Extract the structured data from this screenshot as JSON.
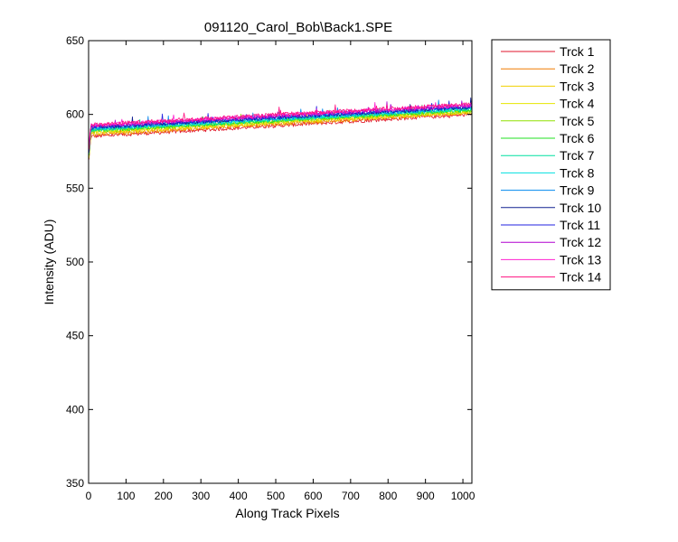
{
  "chart_data": {
    "type": "line",
    "title": "091120_Carol_Bob\\Back1.SPE",
    "xlabel": "Along Track Pixels",
    "ylabel": "Intensity (ADU)",
    "xlim": [
      0,
      1024
    ],
    "ylim": [
      350,
      650
    ],
    "xticks": [
      0,
      100,
      200,
      300,
      400,
      500,
      600,
      700,
      800,
      900,
      1000
    ],
    "yticks": [
      350,
      400,
      450,
      500,
      550,
      600,
      650
    ],
    "grid": false,
    "legend_position": "outside-right",
    "x_range": [
      1,
      1024
    ],
    "series": [
      {
        "name": "Trck 1",
        "color": "#e0162b",
        "start": 585,
        "end": 600
      },
      {
        "name": "Trck 2",
        "color": "#f07a00",
        "start": 586,
        "end": 601
      },
      {
        "name": "Trck 3",
        "color": "#f0d000",
        "start": 587,
        "end": 601.5
      },
      {
        "name": "Trck 4",
        "color": "#e6e600",
        "start": 588,
        "end": 602
      },
      {
        "name": "Trck 5",
        "color": "#8fe000",
        "start": 588.5,
        "end": 602.5
      },
      {
        "name": "Trck 6",
        "color": "#20e020",
        "start": 589,
        "end": 603
      },
      {
        "name": "Trck 7",
        "color": "#00e0a0",
        "start": 589.5,
        "end": 603.5
      },
      {
        "name": "Trck 8",
        "color": "#00e0e0",
        "start": 590,
        "end": 604
      },
      {
        "name": "Trck 9",
        "color": "#0088ee",
        "start": 590.5,
        "end": 604.5
      },
      {
        "name": "Trck 10",
        "color": "#102090",
        "start": 591,
        "end": 605
      },
      {
        "name": "Trck 11",
        "color": "#2020e0",
        "start": 591.5,
        "end": 605.5
      },
      {
        "name": "Trck 12",
        "color": "#b000d0",
        "start": 592,
        "end": 606
      },
      {
        "name": "Trck 13",
        "color": "#ff20d0",
        "start": 592.5,
        "end": 606.5
      },
      {
        "name": "Trck 14",
        "color": "#ff1080",
        "start": 593,
        "end": 607
      }
    ]
  }
}
